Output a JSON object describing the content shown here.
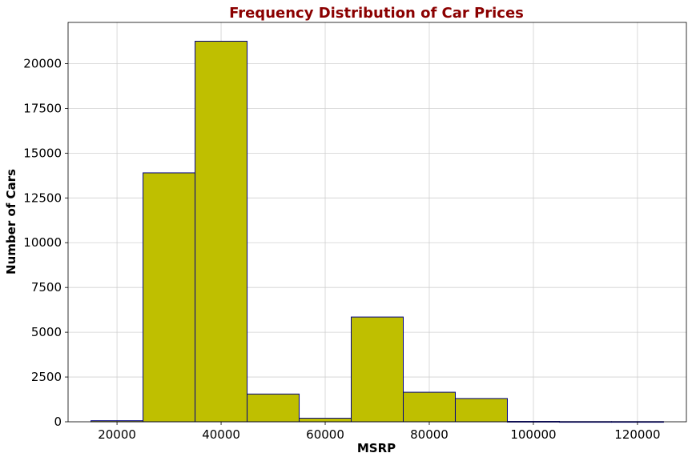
{
  "chart_data": {
    "type": "bar",
    "title": "Frequency Distribution of Car Prices",
    "xlabel": "MSRP",
    "ylabel": "Number of Cars",
    "bins": [
      {
        "start": 15000,
        "end": 25000,
        "count": 60
      },
      {
        "start": 25000,
        "end": 35000,
        "count": 13900
      },
      {
        "start": 35000,
        "end": 45000,
        "count": 21250
      },
      {
        "start": 45000,
        "end": 55000,
        "count": 1550
      },
      {
        "start": 55000,
        "end": 65000,
        "count": 200
      },
      {
        "start": 65000,
        "end": 75000,
        "count": 5850
      },
      {
        "start": 75000,
        "end": 85000,
        "count": 1650
      },
      {
        "start": 85000,
        "end": 95000,
        "count": 1300
      },
      {
        "start": 95000,
        "end": 105000,
        "count": 20
      },
      {
        "start": 105000,
        "end": 115000,
        "count": 10
      },
      {
        "start": 115000,
        "end": 125000,
        "count": 10
      }
    ],
    "xlim": [
      10600,
      129400
    ],
    "ylim": [
      0,
      22300
    ],
    "xticks": [
      20000,
      40000,
      60000,
      80000,
      100000,
      120000
    ],
    "yticks": [
      0,
      2500,
      5000,
      7500,
      10000,
      12500,
      15000,
      17500,
      20000
    ],
    "grid": true,
    "colors": {
      "bar_fill": "#bfbf00",
      "bar_edge": "#000080",
      "title": "#8b0000",
      "grid": "#d0d0d0"
    }
  }
}
